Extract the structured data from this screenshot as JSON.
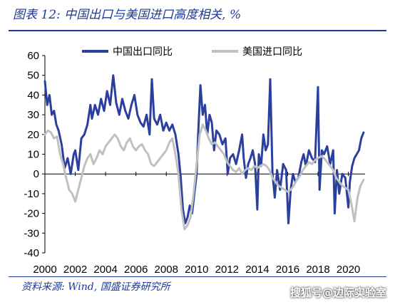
{
  "title": "图表 12:  中国出口与美国进口高度相关, %",
  "source": "资料来源: Wind, 国盛证券研究所",
  "watermark": "搜狐号@边际实验室",
  "colors": {
    "china": "#2a3f9e",
    "us": "#c0c0c0",
    "accent": "#1f3a93"
  },
  "chart_data": {
    "type": "line",
    "xlabel": "",
    "ylabel": "",
    "xlim": [
      2000,
      2021.1
    ],
    "ylim": [
      -40,
      60
    ],
    "yticks": [
      60,
      50,
      40,
      30,
      20,
      10,
      0,
      -10,
      -20,
      -30,
      -40
    ],
    "xticks": [
      2000,
      2002,
      2004,
      2006,
      2008,
      2010,
      2012,
      2014,
      2016,
      2018,
      2020
    ],
    "legend_position": "top",
    "grid": false,
    "series": [
      {
        "name": "中国出口同比",
        "x": [
          2000.0,
          2000.15,
          2000.3,
          2000.45,
          2000.6,
          2000.75,
          2000.9,
          2001.1,
          2001.3,
          2001.5,
          2001.7,
          2001.9,
          2002.0,
          2002.2,
          2002.4,
          2002.6,
          2002.8,
          2003.0,
          2003.1,
          2003.3,
          2003.5,
          2003.7,
          2003.9,
          2004.1,
          2004.3,
          2004.5,
          2004.7,
          2004.9,
          2005.1,
          2005.3,
          2005.5,
          2005.7,
          2005.9,
          2006.1,
          2006.3,
          2006.5,
          2006.7,
          2006.9,
          2007.05,
          2007.2,
          2007.4,
          2007.6,
          2007.8,
          2008.0,
          2008.2,
          2008.4,
          2008.6,
          2008.8,
          2008.95,
          2009.1,
          2009.25,
          2009.4,
          2009.55,
          2009.7,
          2009.85,
          2010.0,
          2010.1,
          2010.25,
          2010.4,
          2010.55,
          2010.7,
          2010.85,
          2011.0,
          2011.15,
          2011.3,
          2011.5,
          2011.7,
          2011.9,
          2012.05,
          2012.2,
          2012.4,
          2012.6,
          2012.8,
          2013.0,
          2013.1,
          2013.25,
          2013.4,
          2013.55,
          2013.7,
          2013.85,
          2014.0,
          2014.1,
          2014.25,
          2014.4,
          2014.55,
          2014.7,
          2014.85,
          2015.0,
          2015.15,
          2015.3,
          2015.5,
          2015.7,
          2015.9,
          2016.05,
          2016.2,
          2016.35,
          2016.5,
          2016.7,
          2016.9,
          2017.05,
          2017.2,
          2017.4,
          2017.6,
          2017.8,
          2018.0,
          2018.1,
          2018.25,
          2018.4,
          2018.6,
          2018.8,
          2019.0,
          2019.1,
          2019.25,
          2019.4,
          2019.6,
          2019.8,
          2020.0,
          2020.1,
          2020.25,
          2020.4,
          2020.55,
          2020.7,
          2020.85,
          2021.0
        ],
        "values": [
          47,
          35,
          40,
          30,
          32,
          25,
          22,
          15,
          3,
          8,
          0,
          10,
          12,
          2,
          18,
          20,
          25,
          35,
          28,
          35,
          30,
          38,
          32,
          42,
          35,
          50,
          36,
          30,
          38,
          32,
          28,
          35,
          40,
          30,
          26,
          24,
          30,
          20,
          48,
          28,
          25,
          30,
          22,
          26,
          22,
          25,
          20,
          10,
          -2,
          -18,
          -25,
          -22,
          -16,
          -20,
          -10,
          0,
          20,
          45,
          30,
          35,
          20,
          30,
          26,
          12,
          22,
          20,
          15,
          18,
          0,
          8,
          10,
          5,
          12,
          20,
          8,
          -2,
          5,
          8,
          12,
          5,
          -18,
          10,
          4,
          20,
          12,
          15,
          48,
          0,
          -12,
          2,
          -8,
          5,
          2,
          -25,
          -8,
          0,
          -4,
          -2,
          6,
          10,
          4,
          12,
          8,
          6,
          44,
          -8,
          12,
          10,
          14,
          5,
          12,
          -20,
          2,
          -10,
          0,
          -2,
          -17,
          -4,
          4,
          8,
          10,
          12,
          18,
          21
        ]
      },
      {
        "name": "美国进口同比",
        "x": [
          2000.0,
          2000.2,
          2000.4,
          2000.6,
          2000.8,
          2001.0,
          2001.2,
          2001.4,
          2001.6,
          2001.8,
          2002.0,
          2002.2,
          2002.4,
          2002.6,
          2002.8,
          2003.0,
          2003.2,
          2003.4,
          2003.6,
          2003.8,
          2004.0,
          2004.2,
          2004.4,
          2004.6,
          2004.8,
          2005.0,
          2005.2,
          2005.4,
          2005.6,
          2005.8,
          2006.0,
          2006.2,
          2006.4,
          2006.6,
          2006.8,
          2007.0,
          2007.2,
          2007.4,
          2007.6,
          2007.8,
          2008.0,
          2008.2,
          2008.4,
          2008.6,
          2008.8,
          2009.0,
          2009.2,
          2009.4,
          2009.6,
          2009.8,
          2010.0,
          2010.2,
          2010.4,
          2010.6,
          2010.8,
          2011.0,
          2011.2,
          2011.4,
          2011.6,
          2011.8,
          2012.0,
          2012.2,
          2012.4,
          2012.6,
          2012.8,
          2013.0,
          2013.2,
          2013.4,
          2013.6,
          2013.8,
          2014.0,
          2014.2,
          2014.4,
          2014.6,
          2014.8,
          2015.0,
          2015.2,
          2015.4,
          2015.6,
          2015.8,
          2016.0,
          2016.2,
          2016.4,
          2016.6,
          2016.8,
          2017.0,
          2017.2,
          2017.4,
          2017.6,
          2017.8,
          2018.0,
          2018.2,
          2018.4,
          2018.6,
          2018.8,
          2019.0,
          2019.2,
          2019.4,
          2019.6,
          2019.8,
          2020.0,
          2020.2,
          2020.4,
          2020.6,
          2020.8,
          2021.0
        ],
        "values": [
          20,
          22,
          21,
          18,
          19,
          10,
          5,
          -2,
          -8,
          -10,
          -14,
          -8,
          -2,
          4,
          8,
          10,
          5,
          8,
          12,
          10,
          14,
          16,
          18,
          20,
          18,
          14,
          12,
          16,
          18,
          14,
          12,
          14,
          15,
          12,
          10,
          5,
          4,
          6,
          8,
          10,
          12,
          16,
          18,
          10,
          0,
          -18,
          -28,
          -26,
          -22,
          -10,
          5,
          20,
          25,
          22,
          18,
          15,
          16,
          14,
          12,
          10,
          6,
          4,
          2,
          1,
          3,
          0,
          2,
          3,
          2,
          4,
          3,
          4,
          5,
          4,
          2,
          -2,
          -4,
          -6,
          -7,
          -8,
          -9,
          -8,
          -6,
          -3,
          -1,
          2,
          4,
          6,
          5,
          7,
          8,
          9,
          8,
          6,
          4,
          2,
          -2,
          -4,
          -6,
          -7,
          -8,
          -15,
          -24,
          -12,
          -6,
          -3
        ]
      }
    ]
  }
}
